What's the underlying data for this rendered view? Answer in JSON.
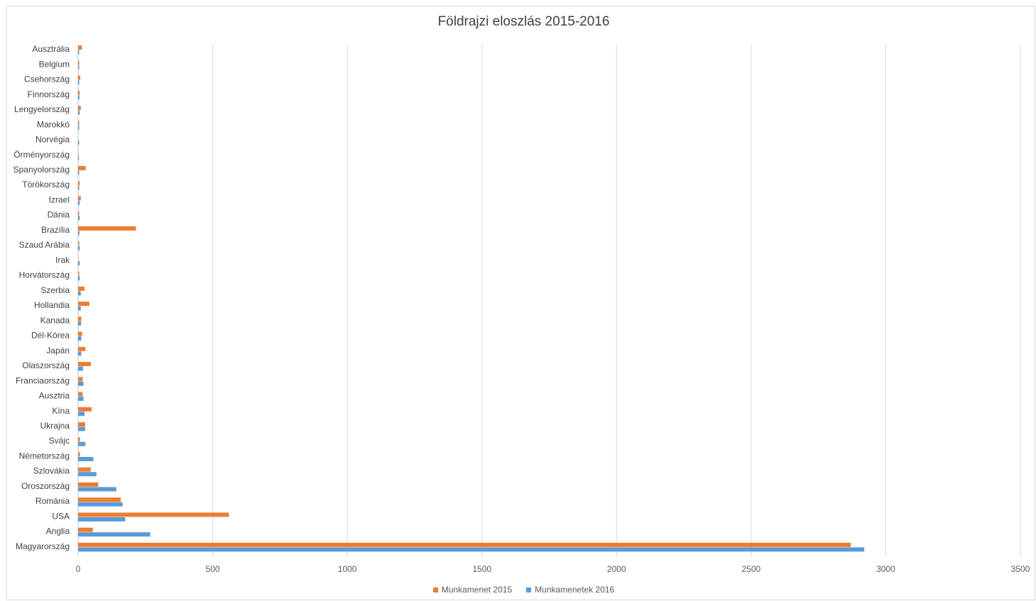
{
  "chart_data": {
    "type": "bar",
    "orientation": "horizontal",
    "title": "Földrajzi eloszlás 2015-2016",
    "xlim": [
      0,
      3500
    ],
    "x_ticks": [
      "0",
      "500",
      "1000",
      "1500",
      "2000",
      "2500",
      "3000",
      "3500"
    ],
    "grid": "vertical",
    "legend_position": "bottom",
    "categories": [
      "Ausztrália",
      "Belgium",
      "Csehország",
      "Finnország",
      "Lengyelország",
      "Marokkó",
      "Norvégia",
      "Örményország",
      "Spanyolország",
      "Törökország",
      "Izrael",
      "Dánia",
      "Brazília",
      "Szaud Arábia",
      "Irak",
      "Horvátország",
      "Szerbia",
      "Hollandia",
      "Kanada",
      "Dél-Kórea",
      "Japán",
      "Olaszország",
      "Franciaország",
      "Ausztria",
      "Kína",
      "Ukrajna",
      "Svájc",
      "Németország",
      "Szlovákia",
      "Oroszország",
      "Románia",
      "USA",
      "Anglia",
      "Magyarország"
    ],
    "series": [
      {
        "name": "Munkamenet 2015",
        "color": "#ed7d31",
        "values": [
          14,
          4,
          8,
          6,
          10,
          4,
          0,
          1,
          28,
          6,
          10,
          4,
          215,
          4,
          1,
          4,
          24,
          42,
          12,
          15,
          27,
          47,
          17,
          17,
          50,
          26,
          7,
          7,
          47,
          75,
          158,
          560,
          55,
          2870
        ]
      },
      {
        "name": "Munkamenetek 2016",
        "color": "#5b9bd5",
        "values": [
          4,
          4,
          4,
          5,
          6,
          4,
          4,
          3,
          4,
          4,
          6,
          6,
          5,
          6,
          6,
          6,
          10,
          10,
          11,
          12,
          12,
          18,
          20,
          20,
          24,
          26,
          27,
          57,
          68,
          142,
          165,
          175,
          268,
          2920
        ]
      }
    ]
  }
}
